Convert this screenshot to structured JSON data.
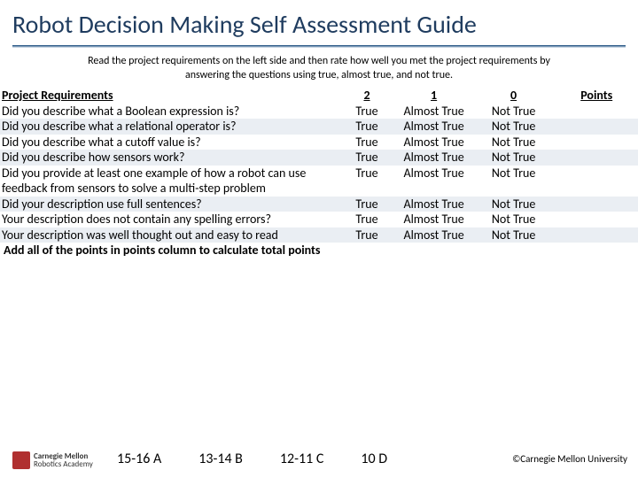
{
  "title": "Robot Decision Making Self Assessment Guide",
  "instructions": "Read the project requirements on the left side and then rate how well you met the project requirements by answering the questions using true, almost true, and not true.",
  "headers": {
    "requirements": "Project Requirements",
    "col2": "2",
    "col1": "1",
    "col0": "0",
    "points": "Points"
  },
  "optionLabels": {
    "true": "True",
    "almost": "Almost True",
    "not": "Not True"
  },
  "rows": [
    {
      "req": "Did you describe what a Boolean expression is?",
      "shade": false
    },
    {
      "req": "Did you describe what a relational operator is?",
      "shade": true
    },
    {
      "req": "Did you describe what a cutoff value is?",
      "shade": false
    },
    {
      "req": "Did you describe how sensors work?",
      "shade": true
    },
    {
      "req": "Did you provide at least one example of how a robot can use feedback from sensors to solve a multi-step problem",
      "shade": false
    },
    {
      "req": "Did your description use full sentences?",
      "shade": true
    },
    {
      "req": "Your description does not contain any spelling errors?",
      "shade": false
    },
    {
      "req": "Your description was well thought out and easy to read",
      "shade": true
    }
  ],
  "summary": "Add all of the points in points column to calculate total points",
  "grades": [
    "15-16 A",
    "13-14 B",
    "12-11 C",
    "10 D"
  ],
  "copyright": "©Carnegie Mellon University",
  "logo": {
    "line1": "Carnegie Mellon",
    "line2": "Robotics Academy"
  }
}
